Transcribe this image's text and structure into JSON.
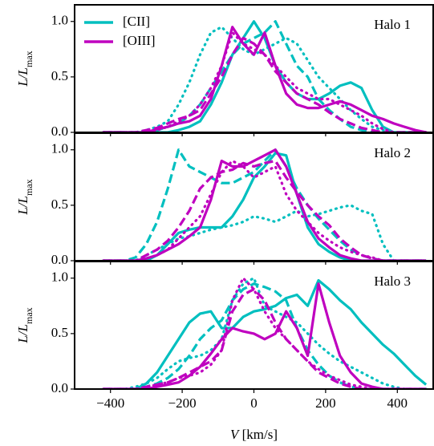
{
  "chart_data": [
    {
      "type": "line",
      "annotation": "Halo 1",
      "ylabel": {
        "text": "L/L",
        "sub": "max"
      },
      "legend": {
        "corner": "upper left",
        "entries": [
          {
            "label": "[CII]",
            "color": "#00bfbf"
          },
          {
            "label": "[OIII]",
            "color": "#bf00bf"
          }
        ]
      },
      "xlim": [
        -500,
        500
      ],
      "ylim": [
        0,
        1.15
      ],
      "yticks": [
        {
          "value": 0,
          "label": "0.0"
        },
        0.5,
        {
          "value": 1,
          "label": "1.0"
        }
      ],
      "x": [
        -420,
        -390,
        -360,
        -330,
        -300,
        -270,
        -240,
        -210,
        -180,
        -150,
        -120,
        -90,
        -60,
        -30,
        0,
        30,
        60,
        90,
        120,
        150,
        180,
        210,
        240,
        270,
        300,
        330,
        360,
        390,
        420,
        450,
        480
      ],
      "series": [
        {
          "color": "#00bfbf",
          "dash": "solid",
          "values": [
            0,
            0,
            0,
            0,
            0,
            0,
            0,
            0.02,
            0.05,
            0.1,
            0.25,
            0.45,
            0.7,
            0.85,
            1.0,
            0.85,
            0.6,
            0.45,
            0.35,
            0.3,
            0.3,
            0.35,
            0.42,
            0.45,
            0.4,
            0.2,
            0.05,
            0,
            0,
            0,
            0
          ]
        },
        {
          "color": "#00bfbf",
          "dash": "dashed",
          "values": [
            0,
            0,
            0,
            0,
            0,
            0.02,
            0.05,
            0.08,
            0.15,
            0.25,
            0.4,
            0.55,
            0.7,
            0.8,
            0.85,
            0.9,
            1.0,
            0.8,
            0.6,
            0.5,
            0.3,
            0.2,
            0.12,
            0.05,
            0.02,
            0,
            0,
            0,
            0,
            0,
            0
          ]
        },
        {
          "color": "#00bfbf",
          "dash": "dotted",
          "values": [
            0,
            0,
            0,
            0,
            0.02,
            0.05,
            0.1,
            0.25,
            0.45,
            0.7,
            0.9,
            0.95,
            0.85,
            0.75,
            0.7,
            0.75,
            0.8,
            0.85,
            0.8,
            0.65,
            0.5,
            0.4,
            0.3,
            0.2,
            0.12,
            0.05,
            0.02,
            0,
            0,
            0,
            0
          ]
        },
        {
          "color": "#bf00bf",
          "dash": "solid",
          "values": [
            0,
            0,
            0,
            0,
            0,
            0.03,
            0.05,
            0.08,
            0.1,
            0.15,
            0.3,
            0.6,
            0.95,
            0.8,
            0.7,
            0.9,
            0.6,
            0.35,
            0.25,
            0.22,
            0.22,
            0.25,
            0.28,
            0.25,
            0.2,
            0.15,
            0.12,
            0.08,
            0.05,
            0.02,
            0
          ]
        },
        {
          "color": "#bf00bf",
          "dash": "dashed",
          "values": [
            0,
            0,
            0,
            0,
            0.02,
            0.04,
            0.08,
            0.12,
            0.15,
            0.2,
            0.35,
            0.5,
            0.7,
            0.85,
            0.8,
            0.7,
            0.55,
            0.45,
            0.35,
            0.3,
            0.25,
            0.18,
            0.12,
            0.08,
            0.04,
            0.02,
            0,
            0,
            0,
            0,
            0
          ]
        },
        {
          "color": "#bf00bf",
          "dash": "dotted",
          "values": [
            0,
            0,
            0,
            0,
            0,
            0.02,
            0.05,
            0.1,
            0.15,
            0.25,
            0.4,
            0.6,
            0.9,
            0.8,
            0.75,
            0.7,
            0.6,
            0.5,
            0.4,
            0.35,
            0.3,
            0.3,
            0.25,
            0.2,
            0.15,
            0.08,
            0.03,
            0,
            0,
            0,
            0
          ]
        }
      ]
    },
    {
      "type": "line",
      "annotation": "Halo 2",
      "ylabel": {
        "text": "L/L",
        "sub": "max"
      },
      "xlim": [
        -500,
        500
      ],
      "ylim": [
        0,
        1.15
      ],
      "yticks": [
        {
          "value": 0,
          "label": "0.0"
        },
        0.5,
        {
          "value": 1,
          "label": "1.0"
        }
      ],
      "x": [
        -420,
        -390,
        -360,
        -330,
        -300,
        -270,
        -240,
        -210,
        -180,
        -150,
        -120,
        -90,
        -60,
        -30,
        0,
        30,
        60,
        90,
        120,
        150,
        180,
        210,
        240,
        270,
        300,
        330,
        360,
        390,
        420,
        450,
        480
      ],
      "series": [
        {
          "color": "#00bfbf",
          "dash": "solid",
          "values": [
            0,
            0,
            0,
            0,
            0,
            0.05,
            0.15,
            0.25,
            0.28,
            0.3,
            0.3,
            0.3,
            0.4,
            0.55,
            0.75,
            0.85,
            0.97,
            0.95,
            0.6,
            0.3,
            0.15,
            0.08,
            0.03,
            0,
            0,
            0,
            0,
            0,
            0,
            0,
            0
          ]
        },
        {
          "color": "#00bfbf",
          "dash": "dashed",
          "values": [
            0,
            0,
            0,
            0.03,
            0.15,
            0.35,
            0.65,
            1.0,
            0.85,
            0.8,
            0.75,
            0.7,
            0.7,
            0.75,
            0.8,
            0.9,
            1.0,
            0.85,
            0.65,
            0.5,
            0.38,
            0.28,
            0.18,
            0.1,
            0.05,
            0.02,
            0,
            0,
            0,
            0,
            0
          ]
        },
        {
          "color": "#00bfbf",
          "dash": "dotted",
          "values": [
            0,
            0,
            0,
            0,
            0.05,
            0.1,
            0.15,
            0.2,
            0.22,
            0.25,
            0.28,
            0.3,
            0.32,
            0.35,
            0.4,
            0.38,
            0.35,
            0.4,
            0.45,
            0.4,
            0.42,
            0.45,
            0.48,
            0.5,
            0.45,
            0.42,
            0.15,
            0,
            0,
            0,
            0
          ]
        },
        {
          "color": "#bf00bf",
          "dash": "solid",
          "values": [
            0,
            0,
            0,
            0,
            0.02,
            0.05,
            0.1,
            0.15,
            0.22,
            0.3,
            0.55,
            0.9,
            0.85,
            0.85,
            0.9,
            0.95,
            1.0,
            0.85,
            0.6,
            0.35,
            0.2,
            0.12,
            0.05,
            0.02,
            0,
            0,
            0,
            0,
            0,
            0,
            0
          ]
        },
        {
          "color": "#bf00bf",
          "dash": "dashed",
          "values": [
            0,
            0,
            0,
            0,
            0.05,
            0.1,
            0.18,
            0.3,
            0.45,
            0.65,
            0.75,
            0.8,
            0.82,
            0.88,
            0.85,
            0.88,
            0.9,
            0.75,
            0.62,
            0.5,
            0.4,
            0.32,
            0.2,
            0.12,
            0.05,
            0.02,
            0,
            0,
            0,
            0,
            0
          ]
        },
        {
          "color": "#bf00bf",
          "dash": "dotted",
          "values": [
            0,
            0,
            0,
            0,
            0.02,
            0.05,
            0.1,
            0.2,
            0.3,
            0.4,
            0.6,
            0.8,
            0.9,
            0.85,
            0.75,
            0.8,
            0.85,
            0.6,
            0.45,
            0.35,
            0.25,
            0.18,
            0.12,
            0.08,
            0.05,
            0.03,
            0,
            0,
            0,
            0,
            0
          ]
        }
      ]
    },
    {
      "type": "line",
      "annotation": "Halo 3",
      "ylabel": {
        "text": "L/L",
        "sub": "max"
      },
      "xlabel": {
        "var": "V",
        "unit": " [km/s]"
      },
      "xlim": [
        -500,
        500
      ],
      "ylim": [
        0,
        1.15
      ],
      "yticks": [
        {
          "value": 0,
          "label": "0.0"
        },
        0.5,
        {
          "value": 1,
          "label": "1.0"
        }
      ],
      "xticks": [
        {
          "value": -400,
          "label": "−400"
        },
        {
          "value": -200,
          "label": "−200"
        },
        0,
        200,
        400
      ],
      "x": [
        -420,
        -390,
        -360,
        -330,
        -300,
        -270,
        -240,
        -210,
        -180,
        -150,
        -120,
        -90,
        -60,
        -30,
        0,
        30,
        60,
        90,
        120,
        150,
        180,
        210,
        240,
        270,
        300,
        330,
        360,
        390,
        420,
        450,
        480
      ],
      "series": [
        {
          "color": "#00bfbf",
          "dash": "solid",
          "values": [
            0,
            0,
            0,
            0,
            0.05,
            0.15,
            0.3,
            0.45,
            0.6,
            0.68,
            0.7,
            0.55,
            0.55,
            0.65,
            0.7,
            0.72,
            0.75,
            0.82,
            0.85,
            0.75,
            0.98,
            0.9,
            0.8,
            0.72,
            0.6,
            0.5,
            0.4,
            0.32,
            0.22,
            0.12,
            0.04
          ]
        },
        {
          "color": "#00bfbf",
          "dash": "dashed",
          "values": [
            0,
            0,
            0,
            0,
            0.02,
            0.05,
            0.1,
            0.18,
            0.3,
            0.45,
            0.55,
            0.62,
            0.8,
            0.9,
            0.95,
            0.92,
            0.88,
            0.8,
            0.55,
            0.35,
            0.22,
            0.12,
            0.06,
            0.02,
            0,
            0,
            0,
            0,
            0,
            0,
            0
          ]
        },
        {
          "color": "#00bfbf",
          "dash": "dotted",
          "values": [
            0,
            0,
            0,
            0.02,
            0.05,
            0.1,
            0.18,
            0.25,
            0.28,
            0.3,
            0.35,
            0.45,
            0.8,
            0.95,
            1.0,
            0.75,
            0.7,
            0.65,
            0.6,
            0.5,
            0.4,
            0.32,
            0.25,
            0.2,
            0.15,
            0.1,
            0.05,
            0.02,
            0,
            0,
            0
          ]
        },
        {
          "color": "#bf00bf",
          "dash": "solid",
          "values": [
            0,
            0,
            0,
            0,
            0,
            0.02,
            0.04,
            0.06,
            0.12,
            0.2,
            0.32,
            0.45,
            0.55,
            0.52,
            0.5,
            0.45,
            0.5,
            0.7,
            0.55,
            0.3,
            0.95,
            0.6,
            0.3,
            0.15,
            0.05,
            0.02,
            0,
            0,
            0,
            0,
            0
          ]
        },
        {
          "color": "#bf00bf",
          "dash": "dashed",
          "values": [
            0,
            0,
            0,
            0,
            0.02,
            0.04,
            0.06,
            0.1,
            0.15,
            0.2,
            0.25,
            0.35,
            0.7,
            0.85,
            0.9,
            0.8,
            0.6,
            0.45,
            0.35,
            0.25,
            0.15,
            0.1,
            0.05,
            0.02,
            0,
            0,
            0,
            0,
            0,
            0,
            0
          ]
        },
        {
          "color": "#bf00bf",
          "dash": "dotted",
          "values": [
            0,
            0,
            0,
            0,
            0.02,
            0.04,
            0.06,
            0.1,
            0.12,
            0.15,
            0.22,
            0.35,
            0.8,
            1.0,
            0.9,
            0.7,
            0.55,
            0.45,
            0.35,
            0.25,
            0.18,
            0.12,
            0.08,
            0.04,
            0.02,
            0,
            0,
            0,
            0,
            0,
            0
          ]
        }
      ]
    }
  ]
}
